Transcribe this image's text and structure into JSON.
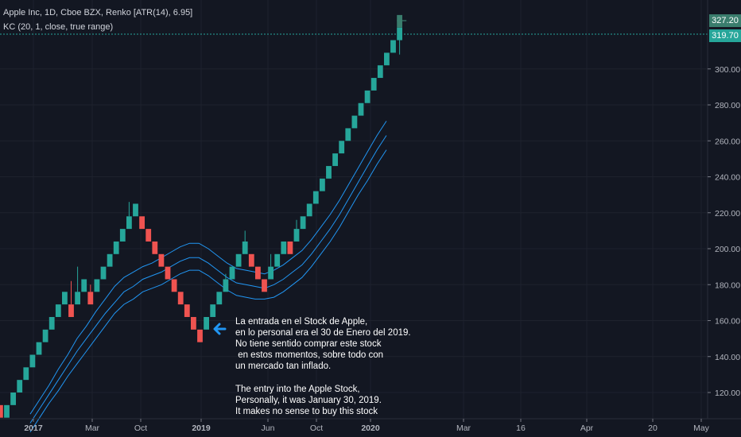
{
  "header": {
    "title": "Apple Inc, 1D, Cboe BZX, Renko [ATR(14), 6.95]",
    "indicator": "KC (20, 1, close, true range)"
  },
  "annotations": {
    "spanish": "La entrada en el Stock de Apple,\nen lo personal era el 30 de Enero del 2019.\nNo tiene sentido comprar este stock\n en estos momentos, sobre todo con\nun mercado tan inflado.",
    "english": "The entry into the Apple Stock,\nPersonally, it was January 30, 2019.\nIt makes no sense to buy this stock"
  },
  "price_tags": {
    "last": "327.20",
    "close": "319.70"
  },
  "colors": {
    "background": "#131722",
    "up": "#26a69a",
    "down": "#ef5350",
    "band": "#2196f3",
    "axis_text": "#b2b5be",
    "arrow": "#2196f3"
  },
  "chart_data": {
    "type": "renko",
    "title": "Apple Inc, 1D, Cboe BZX, Renko [ATR(14), 6.95]",
    "y_ticks": [
      "120.00",
      "140.00",
      "160.00",
      "180.00",
      "200.00",
      "220.00",
      "240.00",
      "260.00",
      "280.00",
      "300.00"
    ],
    "ylim": [
      106,
      333
    ],
    "x_ticks": [
      "2017",
      "Mar",
      "Oct",
      "2019",
      "Jun",
      "Oct",
      "2020",
      "Mar",
      "16",
      "Apr",
      "20",
      "May"
    ],
    "brick_size": 6.95,
    "bricks": [
      {
        "dir": "down",
        "low": 106,
        "high": 113
      },
      {
        "dir": "up",
        "low": 106,
        "high": 113
      },
      {
        "dir": "up",
        "low": 113,
        "high": 120
      },
      {
        "dir": "up",
        "low": 120,
        "high": 127
      },
      {
        "dir": "up",
        "low": 127,
        "high": 134
      },
      {
        "dir": "up",
        "low": 134,
        "high": 141
      },
      {
        "dir": "up",
        "low": 141,
        "high": 148
      },
      {
        "dir": "up",
        "low": 148,
        "high": 155
      },
      {
        "dir": "up",
        "low": 155,
        "high": 162
      },
      {
        "dir": "up",
        "low": 162,
        "high": 169
      },
      {
        "dir": "up",
        "low": 169,
        "high": 176
      },
      {
        "dir": "down",
        "low": 162,
        "high": 169
      },
      {
        "dir": "up",
        "low": 169,
        "high": 176
      },
      {
        "dir": "up",
        "low": 176,
        "high": 183
      },
      {
        "dir": "down",
        "low": 169,
        "high": 176
      },
      {
        "dir": "up",
        "low": 176,
        "high": 183
      },
      {
        "dir": "up",
        "low": 183,
        "high": 190
      },
      {
        "dir": "up",
        "low": 190,
        "high": 197
      },
      {
        "dir": "up",
        "low": 197,
        "high": 204
      },
      {
        "dir": "up",
        "low": 204,
        "high": 211
      },
      {
        "dir": "up",
        "low": 211,
        "high": 218
      },
      {
        "dir": "up",
        "low": 218,
        "high": 225
      },
      {
        "dir": "down",
        "low": 211,
        "high": 218
      },
      {
        "dir": "down",
        "low": 204,
        "high": 211
      },
      {
        "dir": "down",
        "low": 197,
        "high": 204
      },
      {
        "dir": "down",
        "low": 190,
        "high": 197
      },
      {
        "dir": "down",
        "low": 183,
        "high": 190
      },
      {
        "dir": "down",
        "low": 176,
        "high": 183
      },
      {
        "dir": "down",
        "low": 169,
        "high": 176
      },
      {
        "dir": "down",
        "low": 162,
        "high": 169
      },
      {
        "dir": "down",
        "low": 155,
        "high": 162
      },
      {
        "dir": "down",
        "low": 148,
        "high": 155
      },
      {
        "dir": "up",
        "low": 155,
        "high": 162
      },
      {
        "dir": "up",
        "low": 162,
        "high": 169
      },
      {
        "dir": "up",
        "low": 169,
        "high": 176
      },
      {
        "dir": "up",
        "low": 176,
        "high": 183
      },
      {
        "dir": "up",
        "low": 183,
        "high": 190
      },
      {
        "dir": "up",
        "low": 190,
        "high": 197
      },
      {
        "dir": "up",
        "low": 197,
        "high": 204
      },
      {
        "dir": "down",
        "low": 190,
        "high": 197
      },
      {
        "dir": "down",
        "low": 183,
        "high": 190
      },
      {
        "dir": "down",
        "low": 176,
        "high": 183
      },
      {
        "dir": "up",
        "low": 183,
        "high": 190
      },
      {
        "dir": "up",
        "low": 190,
        "high": 197
      },
      {
        "dir": "up",
        "low": 197,
        "high": 204
      },
      {
        "dir": "down",
        "low": 197,
        "high": 204
      },
      {
        "dir": "up",
        "low": 204,
        "high": 211
      },
      {
        "dir": "up",
        "low": 211,
        "high": 218
      },
      {
        "dir": "up",
        "low": 218,
        "high": 225
      },
      {
        "dir": "up",
        "low": 225,
        "high": 232
      },
      {
        "dir": "up",
        "low": 232,
        "high": 239
      },
      {
        "dir": "up",
        "low": 239,
        "high": 246
      },
      {
        "dir": "up",
        "low": 246,
        "high": 253
      },
      {
        "dir": "up",
        "low": 253,
        "high": 260
      },
      {
        "dir": "up",
        "low": 260,
        "high": 267
      },
      {
        "dir": "up",
        "low": 267,
        "high": 274
      },
      {
        "dir": "up",
        "low": 274,
        "high": 281
      },
      {
        "dir": "up",
        "low": 281,
        "high": 288
      },
      {
        "dir": "up",
        "low": 288,
        "high": 295
      },
      {
        "dir": "up",
        "low": 295,
        "high": 302
      },
      {
        "dir": "up",
        "low": 302,
        "high": 309
      },
      {
        "dir": "up",
        "low": 309,
        "high": 316
      },
      {
        "dir": "up",
        "low": 316,
        "high": 323
      }
    ],
    "keltner": {
      "upper": [
        108,
        116,
        124,
        133,
        141,
        150,
        157,
        165,
        172,
        179,
        184,
        187,
        190,
        192,
        195,
        198,
        201,
        203,
        203,
        200,
        196,
        192,
        189,
        188,
        187,
        186,
        188,
        191,
        195,
        199,
        205,
        212,
        219,
        227,
        236,
        245,
        254,
        263,
        271
      ],
      "middle": [
        103,
        111,
        119,
        127,
        135,
        143,
        150,
        157,
        164,
        170,
        176,
        179,
        183,
        185,
        187,
        190,
        193,
        195,
        195,
        192,
        188,
        184,
        181,
        180,
        179,
        178,
        180,
        183,
        187,
        191,
        197,
        204,
        211,
        219,
        228,
        237,
        246,
        255,
        263
      ],
      "lower": [
        98,
        106,
        114,
        121,
        129,
        136,
        143,
        150,
        157,
        164,
        169,
        172,
        176,
        178,
        180,
        183,
        186,
        188,
        188,
        185,
        181,
        177,
        174,
        173,
        172,
        172,
        173,
        176,
        180,
        184,
        190,
        197,
        204,
        212,
        221,
        230,
        238,
        247,
        255
      ]
    }
  }
}
